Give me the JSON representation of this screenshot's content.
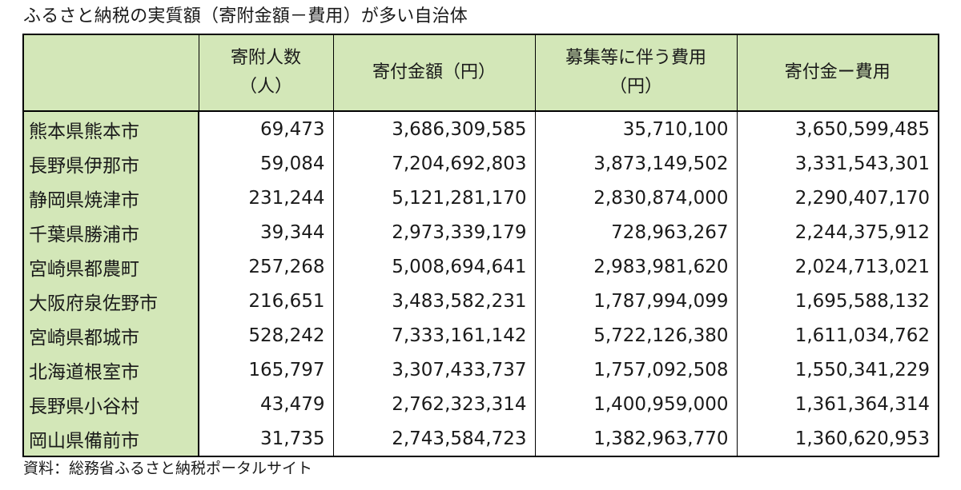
{
  "title": "ふるさと納税の実質額（寄附金額－費用）が多い自治体",
  "table": {
    "headers": {
      "municipality": "",
      "donors": [
        "寄附人数",
        "（人）"
      ],
      "donation": [
        "寄付金額（円）"
      ],
      "cost": [
        "募集等に伴う費用",
        "（円）"
      ],
      "net": [
        "寄付金ー費用"
      ]
    },
    "rows": [
      {
        "name": "熊本県熊本市",
        "donors": "69,473",
        "donation": "3,686,309,585",
        "cost": "35,710,100",
        "net": "3,650,599,485"
      },
      {
        "name": "長野県伊那市",
        "donors": "59,084",
        "donation": "7,204,692,803",
        "cost": "3,873,149,502",
        "net": "3,331,543,301"
      },
      {
        "name": "静岡県焼津市",
        "donors": "231,244",
        "donation": "5,121,281,170",
        "cost": "2,830,874,000",
        "net": "2,290,407,170"
      },
      {
        "name": "千葉県勝浦市",
        "donors": "39,344",
        "donation": "2,973,339,179",
        "cost": "728,963,267",
        "net": "2,244,375,912"
      },
      {
        "name": "宮崎県都農町",
        "donors": "257,268",
        "donation": "5,008,694,641",
        "cost": "2,983,981,620",
        "net": "2,024,713,021"
      },
      {
        "name": "大阪府泉佐野市",
        "donors": "216,651",
        "donation": "3,483,582,231",
        "cost": "1,787,994,099",
        "net": "1,695,588,132"
      },
      {
        "name": "宮崎県都城市",
        "donors": "528,242",
        "donation": "7,333,161,142",
        "cost": "5,722,126,380",
        "net": "1,611,034,762"
      },
      {
        "name": "北海道根室市",
        "donors": "165,797",
        "donation": "3,307,433,737",
        "cost": "1,757,092,508",
        "net": "1,550,341,229"
      },
      {
        "name": "長野県小谷村",
        "donors": "43,479",
        "donation": "2,762,323,314",
        "cost": "1,400,959,000",
        "net": "1,361,364,314"
      },
      {
        "name": "岡山県備前市",
        "donors": "31,735",
        "donation": "2,743,584,723",
        "cost": "1,382,963,770",
        "net": "1,360,620,953"
      }
    ]
  },
  "source": "資料：総務省ふるさと納税ポータルサイト",
  "colors": {
    "header_bg": "#d3e7b8",
    "border": "#000000",
    "text": "#1a1a1a"
  }
}
